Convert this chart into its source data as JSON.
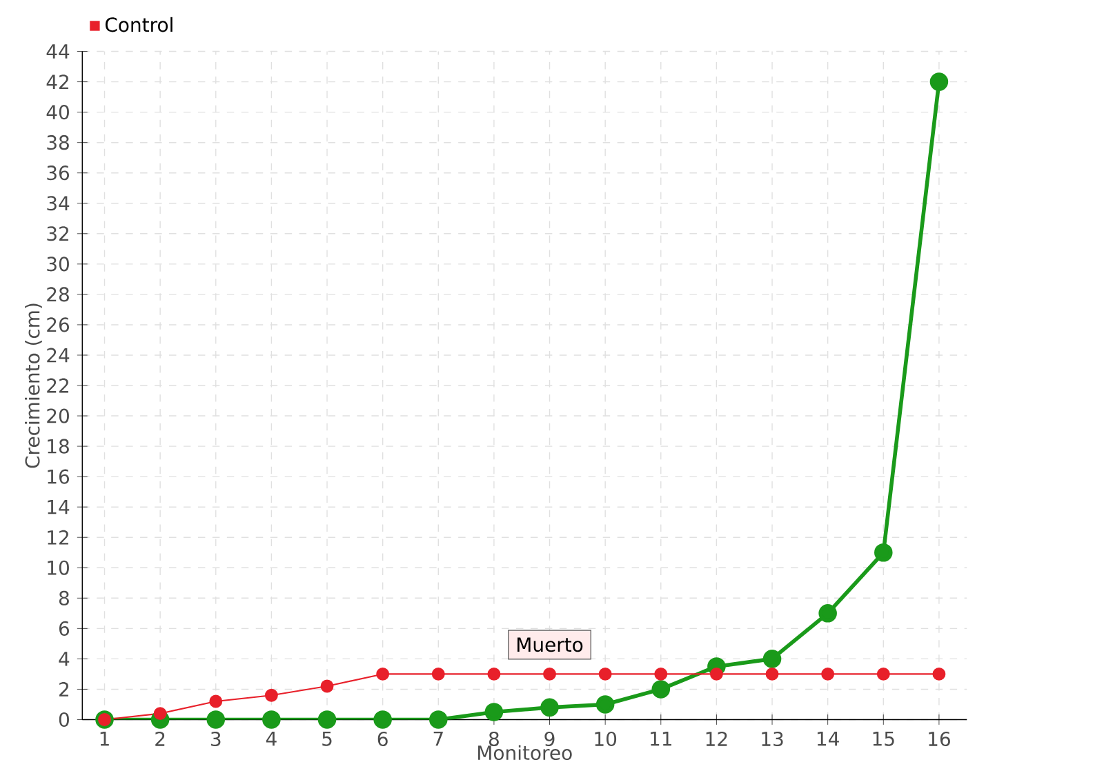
{
  "chart_data": {
    "type": "line",
    "xlabel": "Monitoreo",
    "ylabel": "Crecimiento (cm)",
    "categories": [
      "1",
      "2",
      "3",
      "4",
      "5",
      "6",
      "7",
      "8",
      "9",
      "10",
      "11",
      "12",
      "13",
      "14",
      "15",
      "16"
    ],
    "series": [
      {
        "color": "#1a9a1a",
        "values": [
          0,
          0,
          0,
          0,
          0,
          0,
          0,
          0.5,
          0.8,
          1,
          2,
          3.5,
          4,
          7,
          11,
          42
        ]
      },
      {
        "name": "Control",
        "color": "#e8202a",
        "values": [
          0,
          0.4,
          1.2,
          1.6,
          2.2,
          3,
          3,
          3,
          3,
          3,
          3,
          3,
          3,
          3,
          3,
          3
        ]
      }
    ],
    "ylim": [
      0,
      44
    ],
    "yticks": [
      0,
      2,
      4,
      6,
      8,
      10,
      12,
      14,
      16,
      18,
      20,
      22,
      24,
      26,
      28,
      30,
      32,
      34,
      36,
      38,
      40,
      42,
      44
    ],
    "grid": true,
    "legend": "top left",
    "marker": "circle",
    "line_style": "solid",
    "annotations": [
      {
        "text": "Muerto",
        "x": "9",
        "y": 3
      }
    ]
  }
}
